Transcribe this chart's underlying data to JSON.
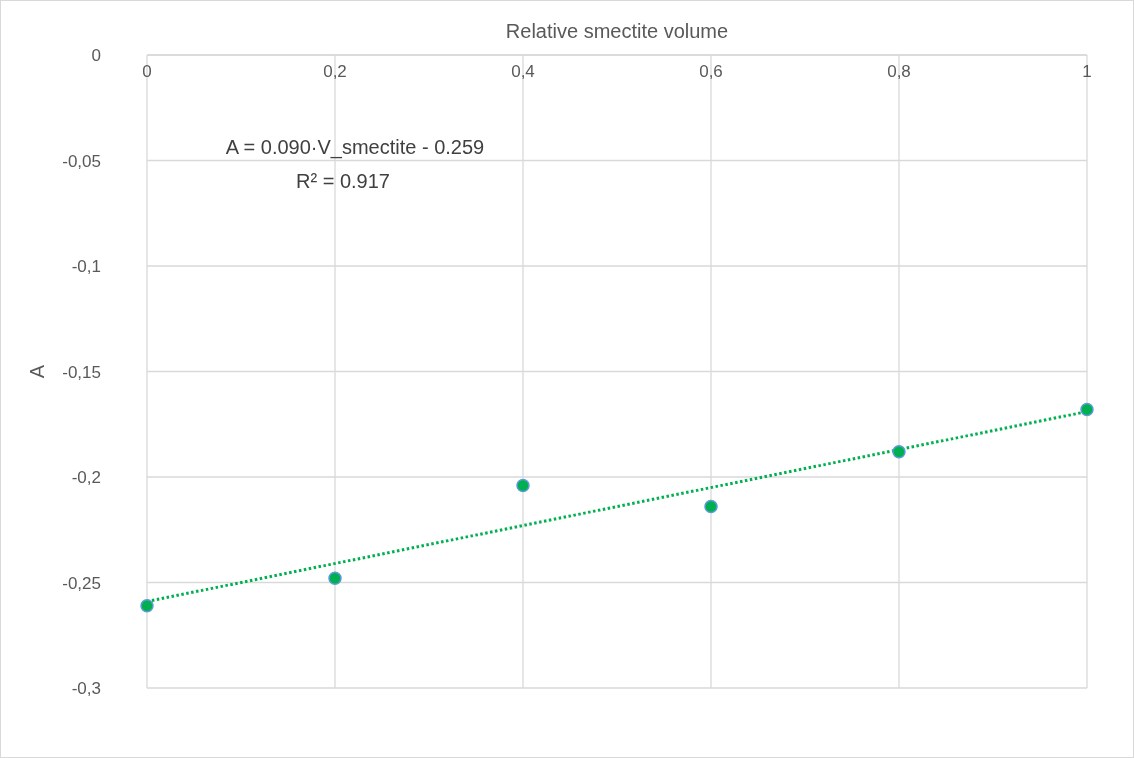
{
  "chart_data": {
    "type": "scatter",
    "xlabel": "Relative smectite volume",
    "ylabel": "A",
    "annotations": [
      "A = 0.090·V_smectite - 0.259",
      "R² = 0.917"
    ],
    "xlim": [
      0,
      1
    ],
    "ylim": [
      -0.3,
      0
    ],
    "xticks": [
      0,
      {
        "value": 0.2,
        "label": "0,2"
      },
      {
        "value": 0.4,
        "label": "0,4"
      },
      {
        "value": 0.6,
        "label": "0,6"
      },
      {
        "value": 0.8,
        "label": "0,8"
      },
      1
    ],
    "yticks": [
      0,
      {
        "value": -0.05,
        "label": "-0,05"
      },
      {
        "value": -0.1,
        "label": "-0,1"
      },
      {
        "value": -0.15,
        "label": "-0,15"
      },
      {
        "value": -0.2,
        "label": "-0,2"
      },
      {
        "value": -0.25,
        "label": "-0,25"
      },
      {
        "value": -0.3,
        "label": "-0,3"
      }
    ],
    "grid": true,
    "series": [
      {
        "type": "scatter",
        "color": "#00b050",
        "marker": "circle",
        "x": [
          0,
          0.2,
          0.4,
          0.6,
          0.8,
          1
        ],
        "values": [
          -0.261,
          -0.248,
          -0.204,
          -0.214,
          -0.188,
          -0.168
        ]
      },
      {
        "type": "line",
        "color": "#00b050",
        "line_style": "dotted",
        "marker": "none",
        "x": [
          0,
          1
        ],
        "values": [
          -0.259,
          -0.169
        ]
      }
    ]
  }
}
